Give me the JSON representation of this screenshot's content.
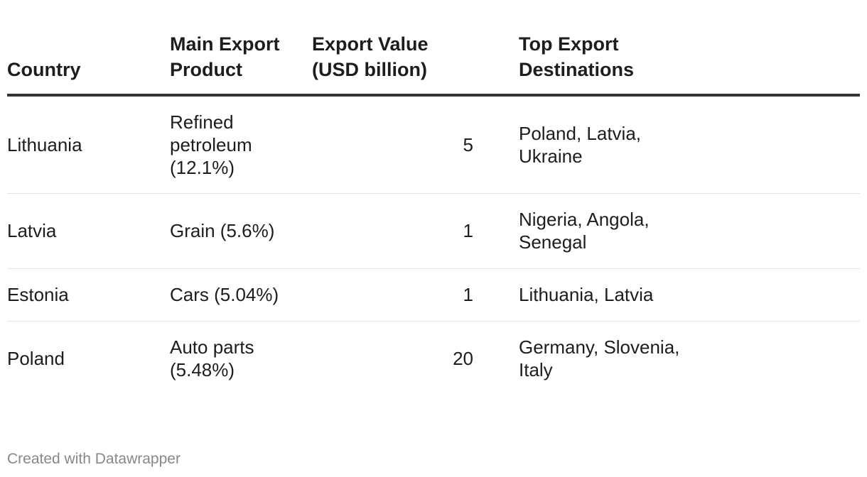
{
  "chart_data": {
    "type": "table",
    "columns": [
      "Country",
      "Main Export Product",
      "Export Value (USD billion)",
      "Top Export Destinations"
    ],
    "rows": [
      [
        "Lithuania",
        "Refined petroleum (12.1%)",
        "5",
        "Poland, Latvia, Ukraine"
      ],
      [
        "Latvia",
        "Grain (5.6%)",
        "1",
        "Nigeria, Angola, Senegal"
      ],
      [
        "Estonia",
        "Cars (5.04%)",
        "1",
        "Lithuania, Latvia"
      ],
      [
        "Poland",
        "Auto parts (5.48%)",
        "20",
        "Germany, Slovenia, Italy"
      ]
    ]
  },
  "footer": "Created with Datawrapper"
}
